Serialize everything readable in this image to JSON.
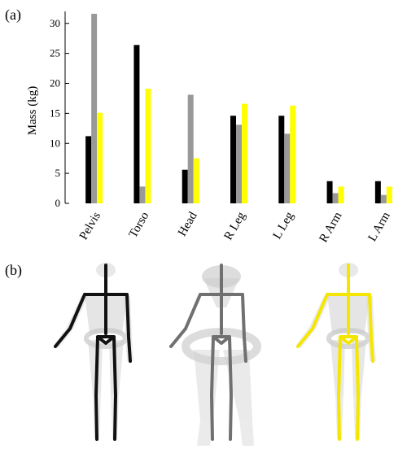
{
  "panels": {
    "a": "(a)",
    "b": "(b)"
  },
  "colors": {
    "series1": "#000000",
    "series2": "#999999",
    "series3": "#ffff00"
  },
  "chart_data": {
    "type": "bar",
    "categories": [
      "Pelvis",
      "Torso",
      "Head",
      "R Leg",
      "L Leg",
      "R Arm",
      "L Arm"
    ],
    "series": [
      {
        "values": [
          11.2,
          26.4,
          5.6,
          14.6,
          14.6,
          3.7,
          3.7
        ]
      },
      {
        "values": [
          31.6,
          2.8,
          18.1,
          13.1,
          11.6,
          1.7,
          1.4
        ]
      },
      {
        "values": [
          15.1,
          19.1,
          7.5,
          16.6,
          16.3,
          2.8,
          2.8
        ]
      }
    ],
    "ylabel": "Mass (kg)",
    "ylim": [
      0,
      32
    ],
    "yticks": [
      0,
      5,
      10,
      15,
      20,
      25,
      30
    ],
    "grid": false,
    "legend": "none"
  },
  "figures": [
    {
      "icon": "skeleton-figure-black"
    },
    {
      "icon": "skeleton-figure-gray"
    },
    {
      "icon": "skeleton-figure-yellow"
    }
  ]
}
